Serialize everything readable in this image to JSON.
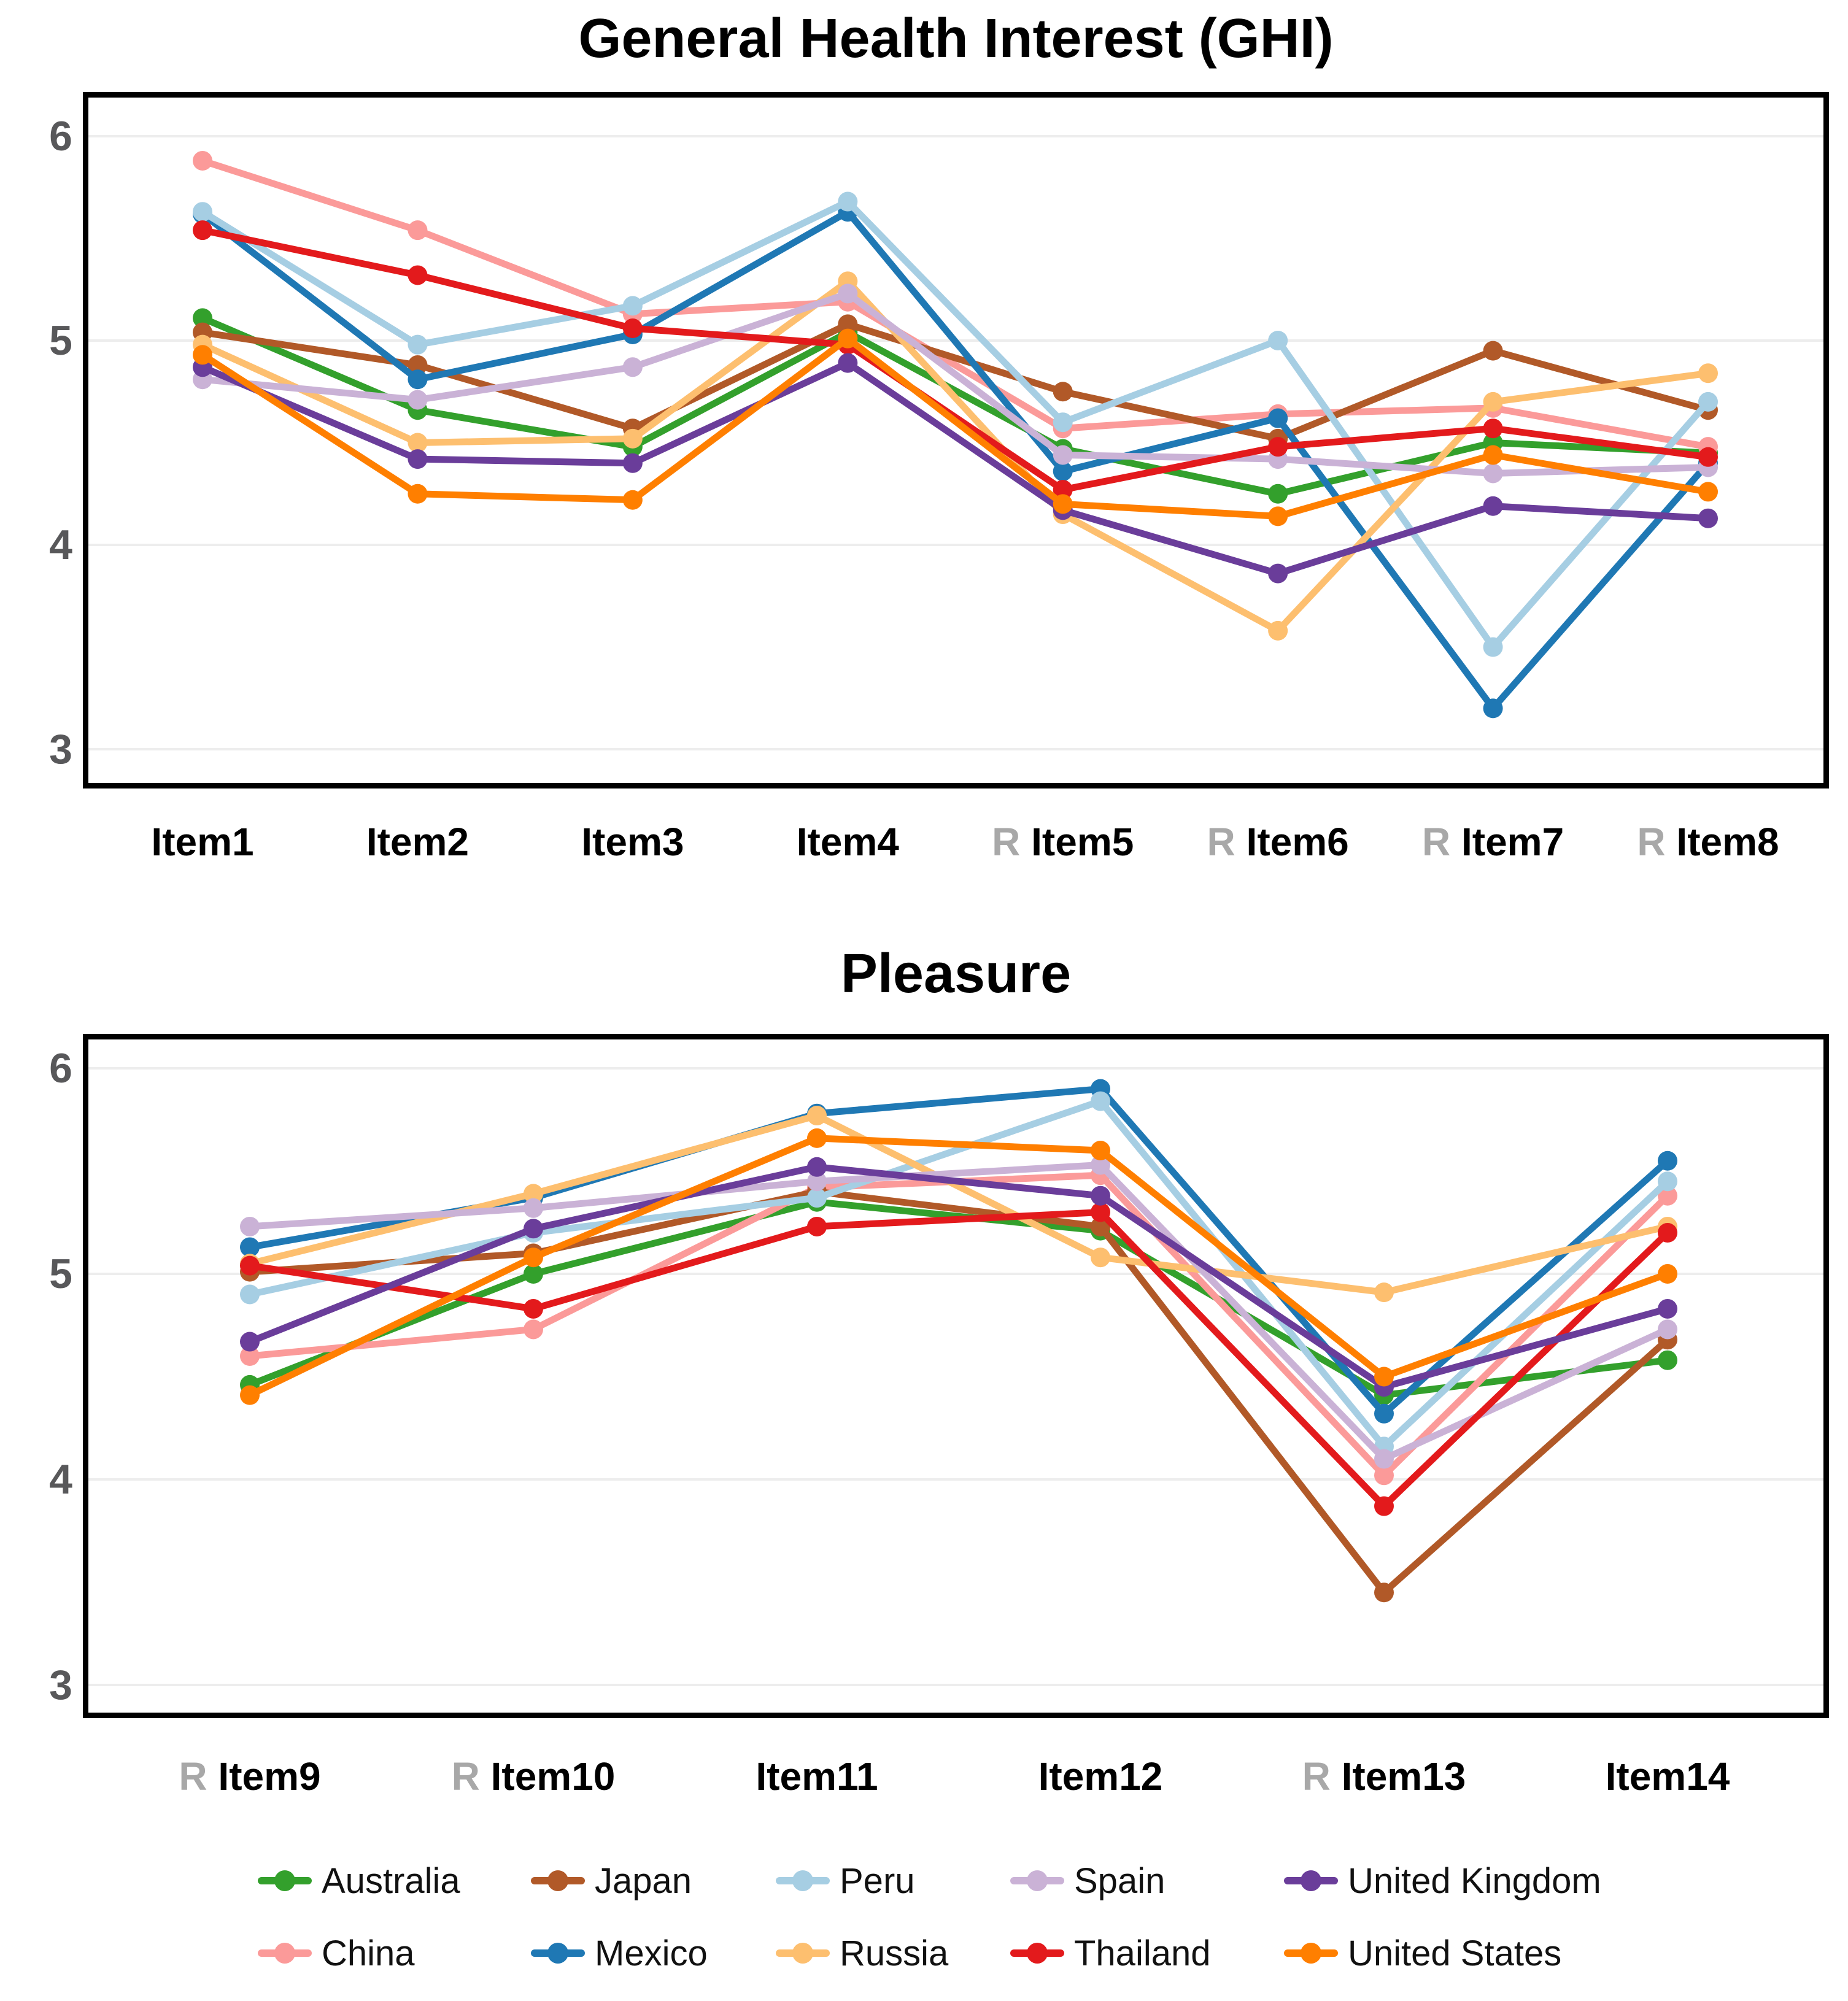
{
  "figure": {
    "background": "#ffffff",
    "grid_color": "#ededed",
    "border_color": "#000000",
    "tick_label_color": "#58585a",
    "reversed_prefix_color": "#a8a8a8",
    "reversed_prefix": "R"
  },
  "chart_data": [
    {
      "type": "line",
      "title": "General Health Interest (GHI)",
      "xlabel": "",
      "ylabel": "",
      "y_ticks": [
        6,
        5,
        4,
        3
      ],
      "ylim": [
        2.81,
        6.22
      ],
      "grid": "horizontal",
      "marker": "circle",
      "categories": [
        "Item1",
        "Item2",
        "Item3",
        "Item4",
        "R Item5",
        "R Item6",
        "R Item7",
        "R Item8"
      ],
      "x_tick_labels": [
        {
          "reversed": false,
          "text": "Item1"
        },
        {
          "reversed": false,
          "text": "Item2"
        },
        {
          "reversed": false,
          "text": "Item3"
        },
        {
          "reversed": false,
          "text": "Item4"
        },
        {
          "reversed": true,
          "text": "Item5"
        },
        {
          "reversed": true,
          "text": "Item6"
        },
        {
          "reversed": true,
          "text": "Item7"
        },
        {
          "reversed": true,
          "text": "Item8"
        }
      ],
      "series": [
        {
          "name": "Australia",
          "color": "#33a02c",
          "values": [
            5.11,
            4.66,
            4.48,
            5.04,
            4.47,
            4.25,
            4.5,
            4.45
          ]
        },
        {
          "name": "China",
          "color": "#fb9a99",
          "values": [
            5.88,
            5.54,
            5.13,
            5.19,
            4.57,
            4.64,
            4.67,
            4.48
          ]
        },
        {
          "name": "Japan",
          "color": "#b15928",
          "values": [
            5.04,
            4.88,
            4.57,
            5.08,
            4.75,
            4.52,
            4.95,
            4.66
          ]
        },
        {
          "name": "Mexico",
          "color": "#1f78b4",
          "values": [
            5.62,
            4.81,
            5.03,
            5.63,
            4.36,
            4.62,
            3.2,
            4.4
          ]
        },
        {
          "name": "Peru",
          "color": "#a6cee3",
          "values": [
            5.63,
            4.98,
            5.17,
            5.68,
            4.6,
            5.0,
            3.5,
            4.7
          ]
        },
        {
          "name": "Russia",
          "color": "#fdbf6f",
          "values": [
            4.98,
            4.5,
            4.52,
            5.29,
            4.15,
            3.58,
            4.7,
            4.84
          ]
        },
        {
          "name": "Spain",
          "color": "#cab2d6",
          "values": [
            4.81,
            4.71,
            4.87,
            5.23,
            4.44,
            4.42,
            4.35,
            4.38
          ]
        },
        {
          "name": "Thailand",
          "color": "#e31a1c",
          "values": [
            5.54,
            5.32,
            5.06,
            4.98,
            4.27,
            4.48,
            4.57,
            4.43
          ]
        },
        {
          "name": "United Kingdom",
          "color": "#6a3d9a",
          "values": [
            4.87,
            4.42,
            4.4,
            4.89,
            4.17,
            3.86,
            4.19,
            4.13
          ]
        },
        {
          "name": "United States",
          "color": "#ff7f00",
          "values": [
            4.93,
            4.25,
            4.22,
            5.01,
            4.2,
            4.14,
            4.44,
            4.26
          ]
        }
      ]
    },
    {
      "type": "line",
      "title": "Pleasure",
      "xlabel": "",
      "ylabel": "",
      "y_ticks": [
        6,
        5,
        4,
        3
      ],
      "ylim": [
        2.84,
        6.17
      ],
      "grid": "horizontal",
      "marker": "circle",
      "categories": [
        "R Item9",
        "R Item10",
        "Item11",
        "Item12",
        "R Item13",
        "Item14"
      ],
      "x_tick_labels": [
        {
          "reversed": true,
          "text": "Item9"
        },
        {
          "reversed": true,
          "text": "Item10"
        },
        {
          "reversed": false,
          "text": "Item11"
        },
        {
          "reversed": false,
          "text": "Item12"
        },
        {
          "reversed": true,
          "text": "Item13"
        },
        {
          "reversed": false,
          "text": "Item14"
        }
      ],
      "series": [
        {
          "name": "Australia",
          "color": "#33a02c",
          "values": [
            4.46,
            5.0,
            5.35,
            5.21,
            4.41,
            4.58
          ]
        },
        {
          "name": "China",
          "color": "#fb9a99",
          "values": [
            4.6,
            4.73,
            5.42,
            5.48,
            4.02,
            5.38
          ]
        },
        {
          "name": "Japan",
          "color": "#b15928",
          "values": [
            5.01,
            5.1,
            5.4,
            5.23,
            3.45,
            4.68
          ]
        },
        {
          "name": "Mexico",
          "color": "#1f78b4",
          "values": [
            5.13,
            5.37,
            5.78,
            5.9,
            4.32,
            5.55
          ]
        },
        {
          "name": "Peru",
          "color": "#a6cee3",
          "values": [
            4.9,
            5.2,
            5.37,
            5.84,
            4.16,
            5.45
          ]
        },
        {
          "name": "Russia",
          "color": "#fdbf6f",
          "values": [
            5.05,
            5.39,
            5.77,
            5.08,
            4.91,
            5.23
          ]
        },
        {
          "name": "Spain",
          "color": "#cab2d6",
          "values": [
            5.23,
            5.32,
            5.45,
            5.53,
            4.1,
            4.73
          ]
        },
        {
          "name": "Thailand",
          "color": "#e31a1c",
          "values": [
            5.04,
            4.83,
            5.23,
            5.3,
            3.87,
            5.2
          ]
        },
        {
          "name": "United Kingdom",
          "color": "#6a3d9a",
          "values": [
            4.67,
            5.22,
            5.52,
            5.38,
            4.45,
            4.83
          ]
        },
        {
          "name": "United States",
          "color": "#ff7f00",
          "values": [
            4.41,
            5.08,
            5.66,
            5.6,
            4.5,
            5.0
          ]
        }
      ]
    }
  ],
  "legend": {
    "position": "bottom",
    "rows": [
      [
        "Australia",
        "Japan",
        "Peru",
        "Spain",
        "United Kingdom"
      ],
      [
        "China",
        "Mexico",
        "Russia",
        "Thailand",
        "United States"
      ]
    ]
  }
}
